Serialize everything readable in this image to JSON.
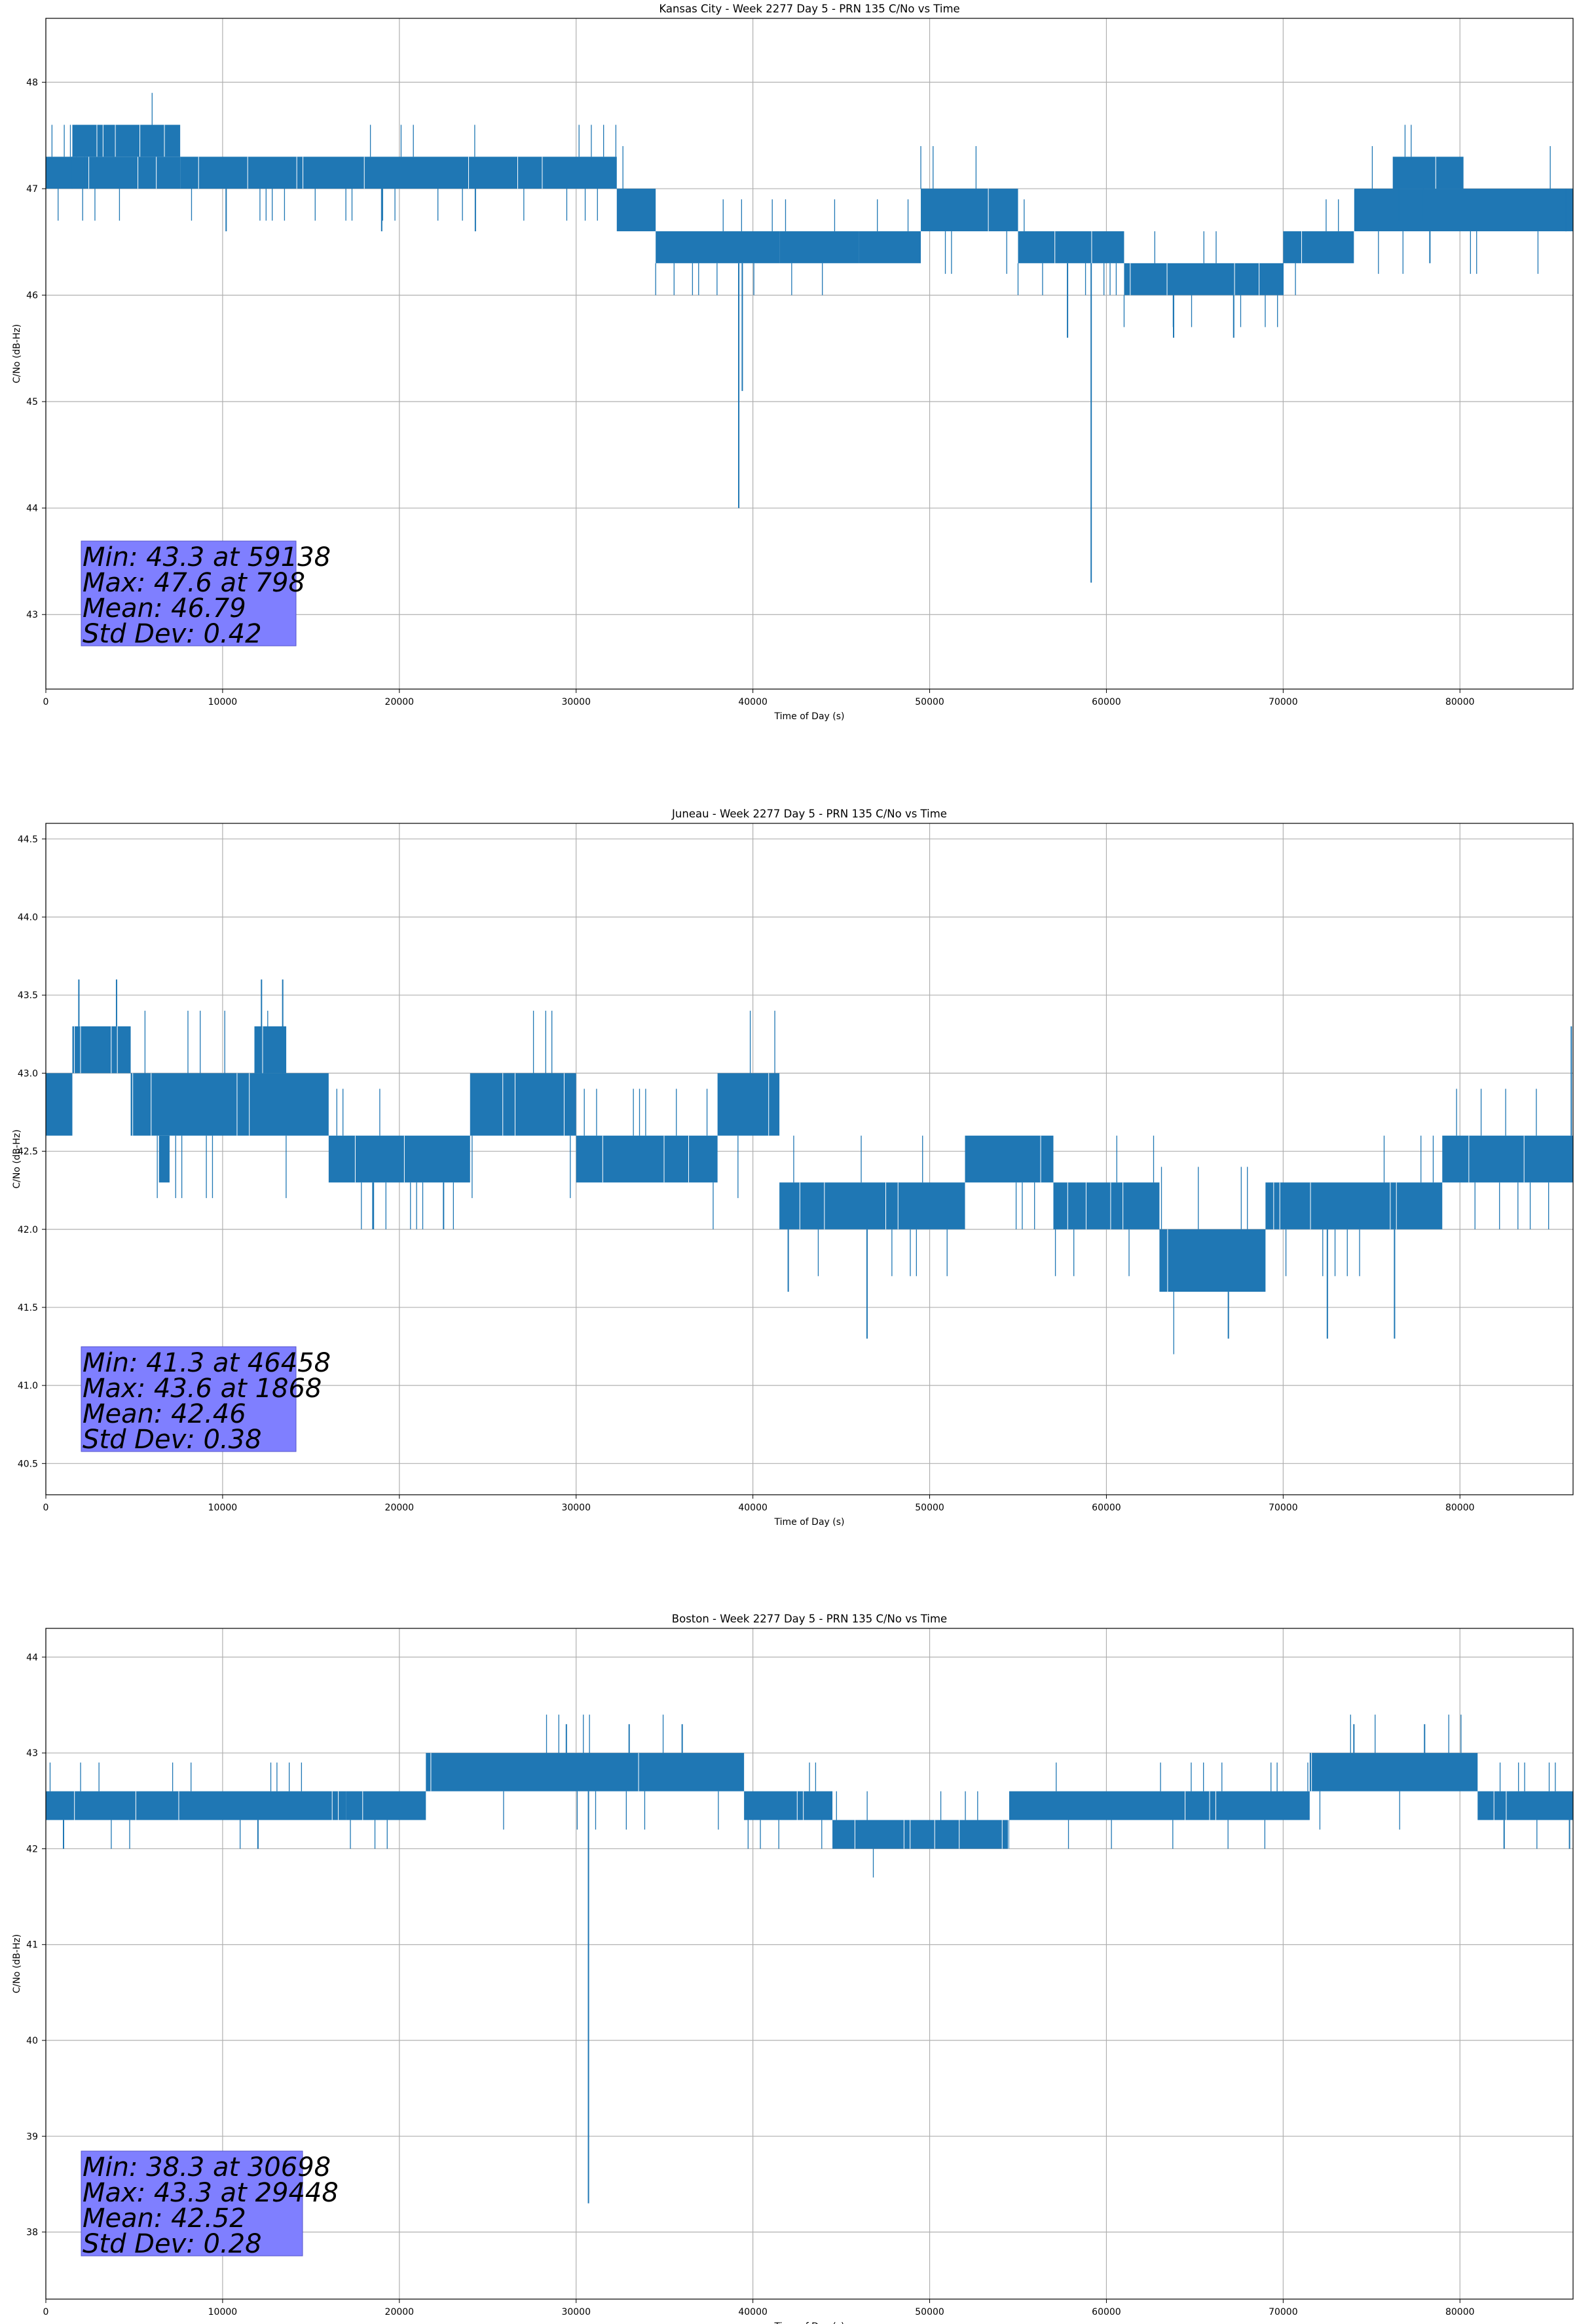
{
  "chart_data": [
    {
      "type": "line",
      "title": "Kansas City - Week 2277 Day 5 - PRN 135 C/No vs Time",
      "xlabel": "Time of Day (s)",
      "ylabel": "C/No (dB-Hz)",
      "xlim": [
        0,
        86400
      ],
      "ylim": [
        42.3,
        48.6
      ],
      "xticks": [
        0,
        10000,
        20000,
        30000,
        40000,
        50000,
        60000,
        70000,
        80000
      ],
      "yticks": [
        43,
        44,
        45,
        46,
        47,
        48
      ],
      "grid": true,
      "color": "#1f77b4",
      "segments": [
        {
          "x": [
            0,
            7600
          ],
          "lo": 47.0,
          "hi": 47.3
        },
        {
          "x": [
            1500,
            7600
          ],
          "lo": 47.3,
          "hi": 47.6
        },
        {
          "x": [
            7600,
            32300
          ],
          "lo": 47.0,
          "hi": 47.3
        },
        {
          "x": [
            32300,
            34500
          ],
          "lo": 46.6,
          "hi": 47.0
        },
        {
          "x": [
            34500,
            41500
          ],
          "lo": 46.3,
          "hi": 46.6
        },
        {
          "x": [
            41500,
            46000
          ],
          "lo": 46.3,
          "hi": 46.6
        },
        {
          "x": [
            46000,
            49500
          ],
          "lo": 46.3,
          "hi": 46.6
        },
        {
          "x": [
            49500,
            55000
          ],
          "lo": 46.6,
          "hi": 47.0
        },
        {
          "x": [
            55000,
            61000
          ],
          "lo": 46.3,
          "hi": 46.6
        },
        {
          "x": [
            61000,
            70000
          ],
          "lo": 46.0,
          "hi": 46.3
        },
        {
          "x": [
            70000,
            74000
          ],
          "lo": 46.3,
          "hi": 46.6
        },
        {
          "x": [
            74000,
            86400
          ],
          "lo": 46.6,
          "hi": 47.0
        },
        {
          "x": [
            76200,
            80200
          ],
          "lo": 47.0,
          "hi": 47.3
        }
      ],
      "spikes": [
        {
          "x": 10200,
          "y": 46.6
        },
        {
          "x": 19000,
          "y": 46.6
        },
        {
          "x": 24300,
          "y": 46.6
        },
        {
          "x": 39200,
          "y": 44.0
        },
        {
          "x": 39400,
          "y": 45.1
        },
        {
          "x": 57800,
          "y": 45.6
        },
        {
          "x": 59138,
          "y": 43.3
        },
        {
          "x": 63800,
          "y": 45.6
        },
        {
          "x": 67200,
          "y": 45.6
        },
        {
          "x": 78300,
          "y": 46.3
        },
        {
          "x": 86000,
          "y": 46.6
        }
      ],
      "stats": [
        "Min: 43.3 at 59138",
        "Max: 47.6 at 798",
        "Mean: 46.79",
        "Std Dev: 0.42"
      ]
    },
    {
      "type": "line",
      "title": "Juneau - Week 2277 Day 5 - PRN 135 C/No vs Time",
      "xlabel": "Time of Day (s)",
      "ylabel": "C/No (dB-Hz)",
      "xlim": [
        0,
        86400
      ],
      "ylim": [
        40.3,
        44.6
      ],
      "xticks": [
        0,
        10000,
        20000,
        30000,
        40000,
        50000,
        60000,
        70000,
        80000
      ],
      "yticks": [
        40.5,
        41.0,
        41.5,
        42.0,
        42.5,
        43.0,
        43.5,
        44.0,
        44.5
      ],
      "grid": true,
      "color": "#1f77b4",
      "segments": [
        {
          "x": [
            0,
            1500
          ],
          "lo": 42.6,
          "hi": 43.0
        },
        {
          "x": [
            1500,
            4800
          ],
          "lo": 43.0,
          "hi": 43.3
        },
        {
          "x": [
            4800,
            16000
          ],
          "lo": 42.6,
          "hi": 43.0
        },
        {
          "x": [
            6400,
            7000
          ],
          "lo": 42.3,
          "hi": 42.6
        },
        {
          "x": [
            11800,
            13600
          ],
          "lo": 43.0,
          "hi": 43.3
        },
        {
          "x": [
            16000,
            24000
          ],
          "lo": 42.3,
          "hi": 42.6
        },
        {
          "x": [
            24000,
            30000
          ],
          "lo": 42.6,
          "hi": 43.0
        },
        {
          "x": [
            30000,
            38000
          ],
          "lo": 42.3,
          "hi": 42.6
        },
        {
          "x": [
            38000,
            41500
          ],
          "lo": 42.6,
          "hi": 43.0
        },
        {
          "x": [
            41500,
            52000
          ],
          "lo": 42.0,
          "hi": 42.3
        },
        {
          "x": [
            52000,
            57000
          ],
          "lo": 42.3,
          "hi": 42.6
        },
        {
          "x": [
            57000,
            63000
          ],
          "lo": 42.0,
          "hi": 42.3
        },
        {
          "x": [
            63000,
            69000
          ],
          "lo": 41.6,
          "hi": 42.0
        },
        {
          "x": [
            69000,
            79000
          ],
          "lo": 42.0,
          "hi": 42.3
        },
        {
          "x": [
            79000,
            86400
          ],
          "lo": 42.3,
          "hi": 42.6
        }
      ],
      "spikes": [
        {
          "x": 18500,
          "y": 42.0
        },
        {
          "x": 22500,
          "y": 42.0
        },
        {
          "x": 42000,
          "y": 41.6
        },
        {
          "x": 46458,
          "y": 41.3
        },
        {
          "x": 66900,
          "y": 41.3
        },
        {
          "x": 72500,
          "y": 41.3
        },
        {
          "x": 76300,
          "y": 41.3
        },
        {
          "x": 1868,
          "y": 43.6
        },
        {
          "x": 12200,
          "y": 43.6
        },
        {
          "x": 13400,
          "y": 43.6
        },
        {
          "x": 4000,
          "y": 43.6
        },
        {
          "x": 86300,
          "y": 43.3
        }
      ],
      "stats": [
        "Min: 41.3 at 46458",
        "Max: 43.6 at 1868",
        "Mean: 42.46",
        "Std Dev: 0.38"
      ]
    },
    {
      "type": "line",
      "title": "Boston - Week 2277 Day 5 - PRN 135 C/No vs Time",
      "xlabel": "Time of Day (s)",
      "ylabel": "C/No (dB-Hz)",
      "xlim": [
        0,
        86400
      ],
      "ylim": [
        37.3,
        44.3
      ],
      "xticks": [
        0,
        10000,
        20000,
        30000,
        40000,
        50000,
        60000,
        70000,
        80000
      ],
      "yticks": [
        38,
        39,
        40,
        41,
        42,
        43,
        44
      ],
      "grid": true,
      "color": "#1f77b4",
      "segments": [
        {
          "x": [
            0,
            17000
          ],
          "lo": 42.3,
          "hi": 42.6
        },
        {
          "x": [
            17000,
            21500
          ],
          "lo": 42.3,
          "hi": 42.6
        },
        {
          "x": [
            21500,
            39500
          ],
          "lo": 42.6,
          "hi": 43.0
        },
        {
          "x": [
            39500,
            44500
          ],
          "lo": 42.3,
          "hi": 42.6
        },
        {
          "x": [
            44500,
            54500
          ],
          "lo": 42.0,
          "hi": 42.3
        },
        {
          "x": [
            54500,
            71500
          ],
          "lo": 42.3,
          "hi": 42.6
        },
        {
          "x": [
            71500,
            81000
          ],
          "lo": 42.6,
          "hi": 43.0
        },
        {
          "x": [
            81000,
            86400
          ],
          "lo": 42.3,
          "hi": 42.6
        }
      ],
      "spikes": [
        {
          "x": 30698,
          "y": 38.3
        },
        {
          "x": 29448,
          "y": 43.3
        },
        {
          "x": 33000,
          "y": 43.3
        },
        {
          "x": 36000,
          "y": 43.3
        },
        {
          "x": 74000,
          "y": 43.3
        },
        {
          "x": 78000,
          "y": 43.3
        },
        {
          "x": 1000,
          "y": 42.0
        },
        {
          "x": 12000,
          "y": 42.0
        },
        {
          "x": 82500,
          "y": 42.0
        },
        {
          "x": 86200,
          "y": 42.0
        }
      ],
      "stats": [
        "Min: 38.3 at 30698",
        "Max: 43.3 at 29448",
        "Mean: 42.52",
        "Std Dev: 0.28"
      ]
    }
  ]
}
